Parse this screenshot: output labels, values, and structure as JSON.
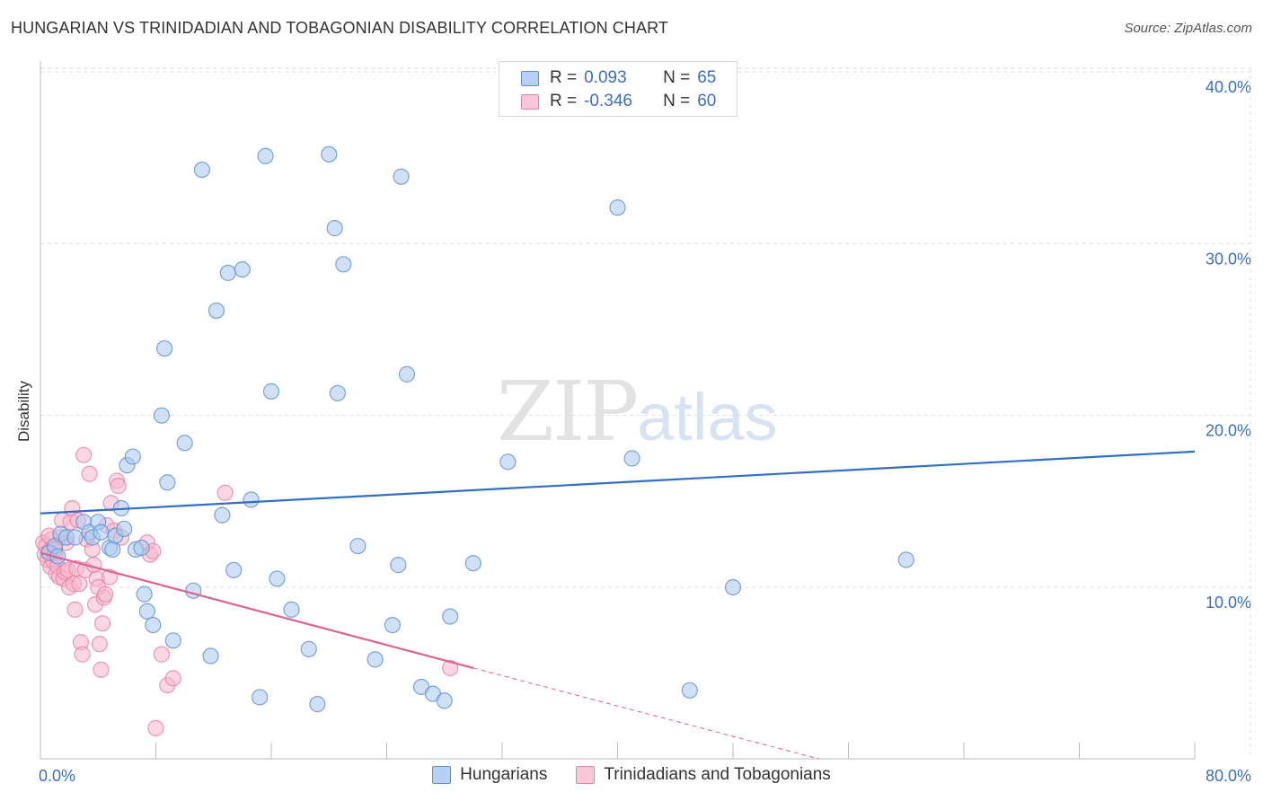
{
  "title": "HUNGARIAN VS TRINIDADIAN AND TOBAGONIAN DISABILITY CORRELATION CHART",
  "source": "Source: ZipAtlas.com",
  "watermark": {
    "zip": "ZIP",
    "atlas": "atlas"
  },
  "legend": {
    "rows": [
      {
        "r_label": "R =",
        "r_value": "0.093",
        "n_label": "N =",
        "n_value": "65"
      },
      {
        "r_label": "R =",
        "r_value": "-0.346",
        "n_label": "N =",
        "n_value": "60"
      }
    ]
  },
  "bottom_legend": [
    "Hungarians",
    "Trinidadians and Tobagonians"
  ],
  "colors": {
    "blue_fill": "#a9c8ef",
    "blue_stroke": "#5b8ed6",
    "blue_line": "#2f6fc8",
    "pink_fill": "#f6b6cc",
    "pink_stroke": "#e97fa2",
    "pink_line": "#e0608e",
    "grid": "#dddddd",
    "tick_text": "#3a6fc0"
  },
  "chart_data": {
    "type": "scatter",
    "title": "HUNGARIAN VS TRINIDADIAN AND TOBAGONIAN DISABILITY CORRELATION CHART",
    "xlabel": "",
    "ylabel": "Disability",
    "xlim": [
      0,
      80
    ],
    "ylim": [
      0,
      40
    ],
    "x_tick_labels": [
      "0.0%",
      "80.0%"
    ],
    "y_ticks": [
      10,
      20,
      30,
      40
    ],
    "y_tick_labels": [
      "10.0%",
      "20.0%",
      "30.0%",
      "40.0%"
    ],
    "grid": true,
    "legend_position": "top-center",
    "series": [
      {
        "name": "Hungarians",
        "color": "blue",
        "R": 0.093,
        "N": 65,
        "trend": {
          "x": [
            0,
            80
          ],
          "y": [
            14.3,
            17.9
          ]
        },
        "points": [
          [
            0.6,
            12.0
          ],
          [
            1.0,
            12.4
          ],
          [
            1.2,
            11.8
          ],
          [
            1.4,
            13.1
          ],
          [
            1.8,
            12.9
          ],
          [
            2.4,
            12.9
          ],
          [
            3.0,
            13.8
          ],
          [
            3.4,
            13.2
          ],
          [
            3.6,
            12.9
          ],
          [
            4.0,
            13.8
          ],
          [
            4.2,
            13.2
          ],
          [
            4.8,
            12.3
          ],
          [
            5.0,
            12.2
          ],
          [
            5.2,
            13.0
          ],
          [
            5.6,
            14.6
          ],
          [
            5.8,
            13.4
          ],
          [
            6.0,
            17.1
          ],
          [
            6.4,
            17.6
          ],
          [
            6.6,
            12.2
          ],
          [
            7.0,
            12.3
          ],
          [
            7.2,
            9.6
          ],
          [
            7.4,
            8.6
          ],
          [
            7.8,
            7.8
          ],
          [
            8.4,
            20.0
          ],
          [
            8.6,
            23.9
          ],
          [
            8.8,
            16.1
          ],
          [
            9.2,
            6.9
          ],
          [
            10.0,
            18.4
          ],
          [
            10.6,
            9.8
          ],
          [
            11.2,
            34.3
          ],
          [
            11.8,
            6.0
          ],
          [
            12.2,
            26.1
          ],
          [
            12.6,
            14.2
          ],
          [
            13.0,
            28.3
          ],
          [
            13.4,
            11.0
          ],
          [
            14.0,
            28.5
          ],
          [
            14.6,
            15.1
          ],
          [
            15.2,
            3.6
          ],
          [
            15.6,
            35.1
          ],
          [
            16.0,
            21.4
          ],
          [
            16.4,
            10.5
          ],
          [
            17.4,
            8.7
          ],
          [
            18.6,
            6.4
          ],
          [
            19.2,
            3.2
          ],
          [
            20.0,
            35.2
          ],
          [
            20.4,
            30.9
          ],
          [
            20.6,
            21.3
          ],
          [
            21.0,
            28.8
          ],
          [
            22.0,
            12.4
          ],
          [
            23.2,
            5.8
          ],
          [
            24.4,
            7.8
          ],
          [
            24.8,
            11.3
          ],
          [
            25.0,
            33.9
          ],
          [
            25.4,
            22.4
          ],
          [
            26.4,
            4.2
          ],
          [
            27.2,
            3.8
          ],
          [
            28.0,
            3.4
          ],
          [
            28.4,
            8.3
          ],
          [
            30.0,
            11.4
          ],
          [
            32.4,
            17.3
          ],
          [
            40.0,
            32.1
          ],
          [
            41.0,
            17.5
          ],
          [
            45.0,
            4.0
          ],
          [
            48.0,
            10.0
          ],
          [
            60.0,
            11.6
          ]
        ]
      },
      {
        "name": "Trinidadians and Tobagonians",
        "color": "pink",
        "R": -0.346,
        "N": 60,
        "trend": {
          "x": [
            0,
            30
          ],
          "y": [
            12.0,
            5.3
          ]
        },
        "trend_dashed": {
          "x": [
            30,
            54
          ],
          "y": [
            5.3,
            0.0
          ]
        },
        "points": [
          [
            0.2,
            12.6
          ],
          [
            0.3,
            11.9
          ],
          [
            0.4,
            12.4
          ],
          [
            0.5,
            11.6
          ],
          [
            0.6,
            12.1
          ],
          [
            0.7,
            11.2
          ],
          [
            0.8,
            12.8
          ],
          [
            0.9,
            11.5
          ],
          [
            1.0,
            11.9
          ],
          [
            1.1,
            10.8
          ],
          [
            1.2,
            11.2
          ],
          [
            1.3,
            10.6
          ],
          [
            1.4,
            12.9
          ],
          [
            1.5,
            13.9
          ],
          [
            1.6,
            10.5
          ],
          [
            1.7,
            10.9
          ],
          [
            1.8,
            12.6
          ],
          [
            1.9,
            11.0
          ],
          [
            2.0,
            10.0
          ],
          [
            2.1,
            13.8
          ],
          [
            2.2,
            14.6
          ],
          [
            2.3,
            10.2
          ],
          [
            2.4,
            8.7
          ],
          [
            2.5,
            11.1
          ],
          [
            2.6,
            13.9
          ],
          [
            2.7,
            10.2
          ],
          [
            2.8,
            6.8
          ],
          [
            2.9,
            6.1
          ],
          [
            3.0,
            17.7
          ],
          [
            3.1,
            11.0
          ],
          [
            3.2,
            12.8
          ],
          [
            3.4,
            16.6
          ],
          [
            3.6,
            12.2
          ],
          [
            3.7,
            11.3
          ],
          [
            3.8,
            9.0
          ],
          [
            3.9,
            10.5
          ],
          [
            4.0,
            10.0
          ],
          [
            4.1,
            6.7
          ],
          [
            4.2,
            5.2
          ],
          [
            4.3,
            7.9
          ],
          [
            4.4,
            9.4
          ],
          [
            4.5,
            9.6
          ],
          [
            4.6,
            13.6
          ],
          [
            4.8,
            10.6
          ],
          [
            4.9,
            14.9
          ],
          [
            5.1,
            13.3
          ],
          [
            5.3,
            16.2
          ],
          [
            5.4,
            15.9
          ],
          [
            5.6,
            12.9
          ],
          [
            7.4,
            12.6
          ],
          [
            7.6,
            11.9
          ],
          [
            7.8,
            12.1
          ],
          [
            12.8,
            15.5
          ],
          [
            8.0,
            1.8
          ],
          [
            8.4,
            6.1
          ],
          [
            8.8,
            4.3
          ],
          [
            9.2,
            4.7
          ],
          [
            28.4,
            5.3
          ],
          [
            0.6,
            13.0
          ],
          [
            1.0,
            12.2
          ]
        ]
      }
    ]
  }
}
